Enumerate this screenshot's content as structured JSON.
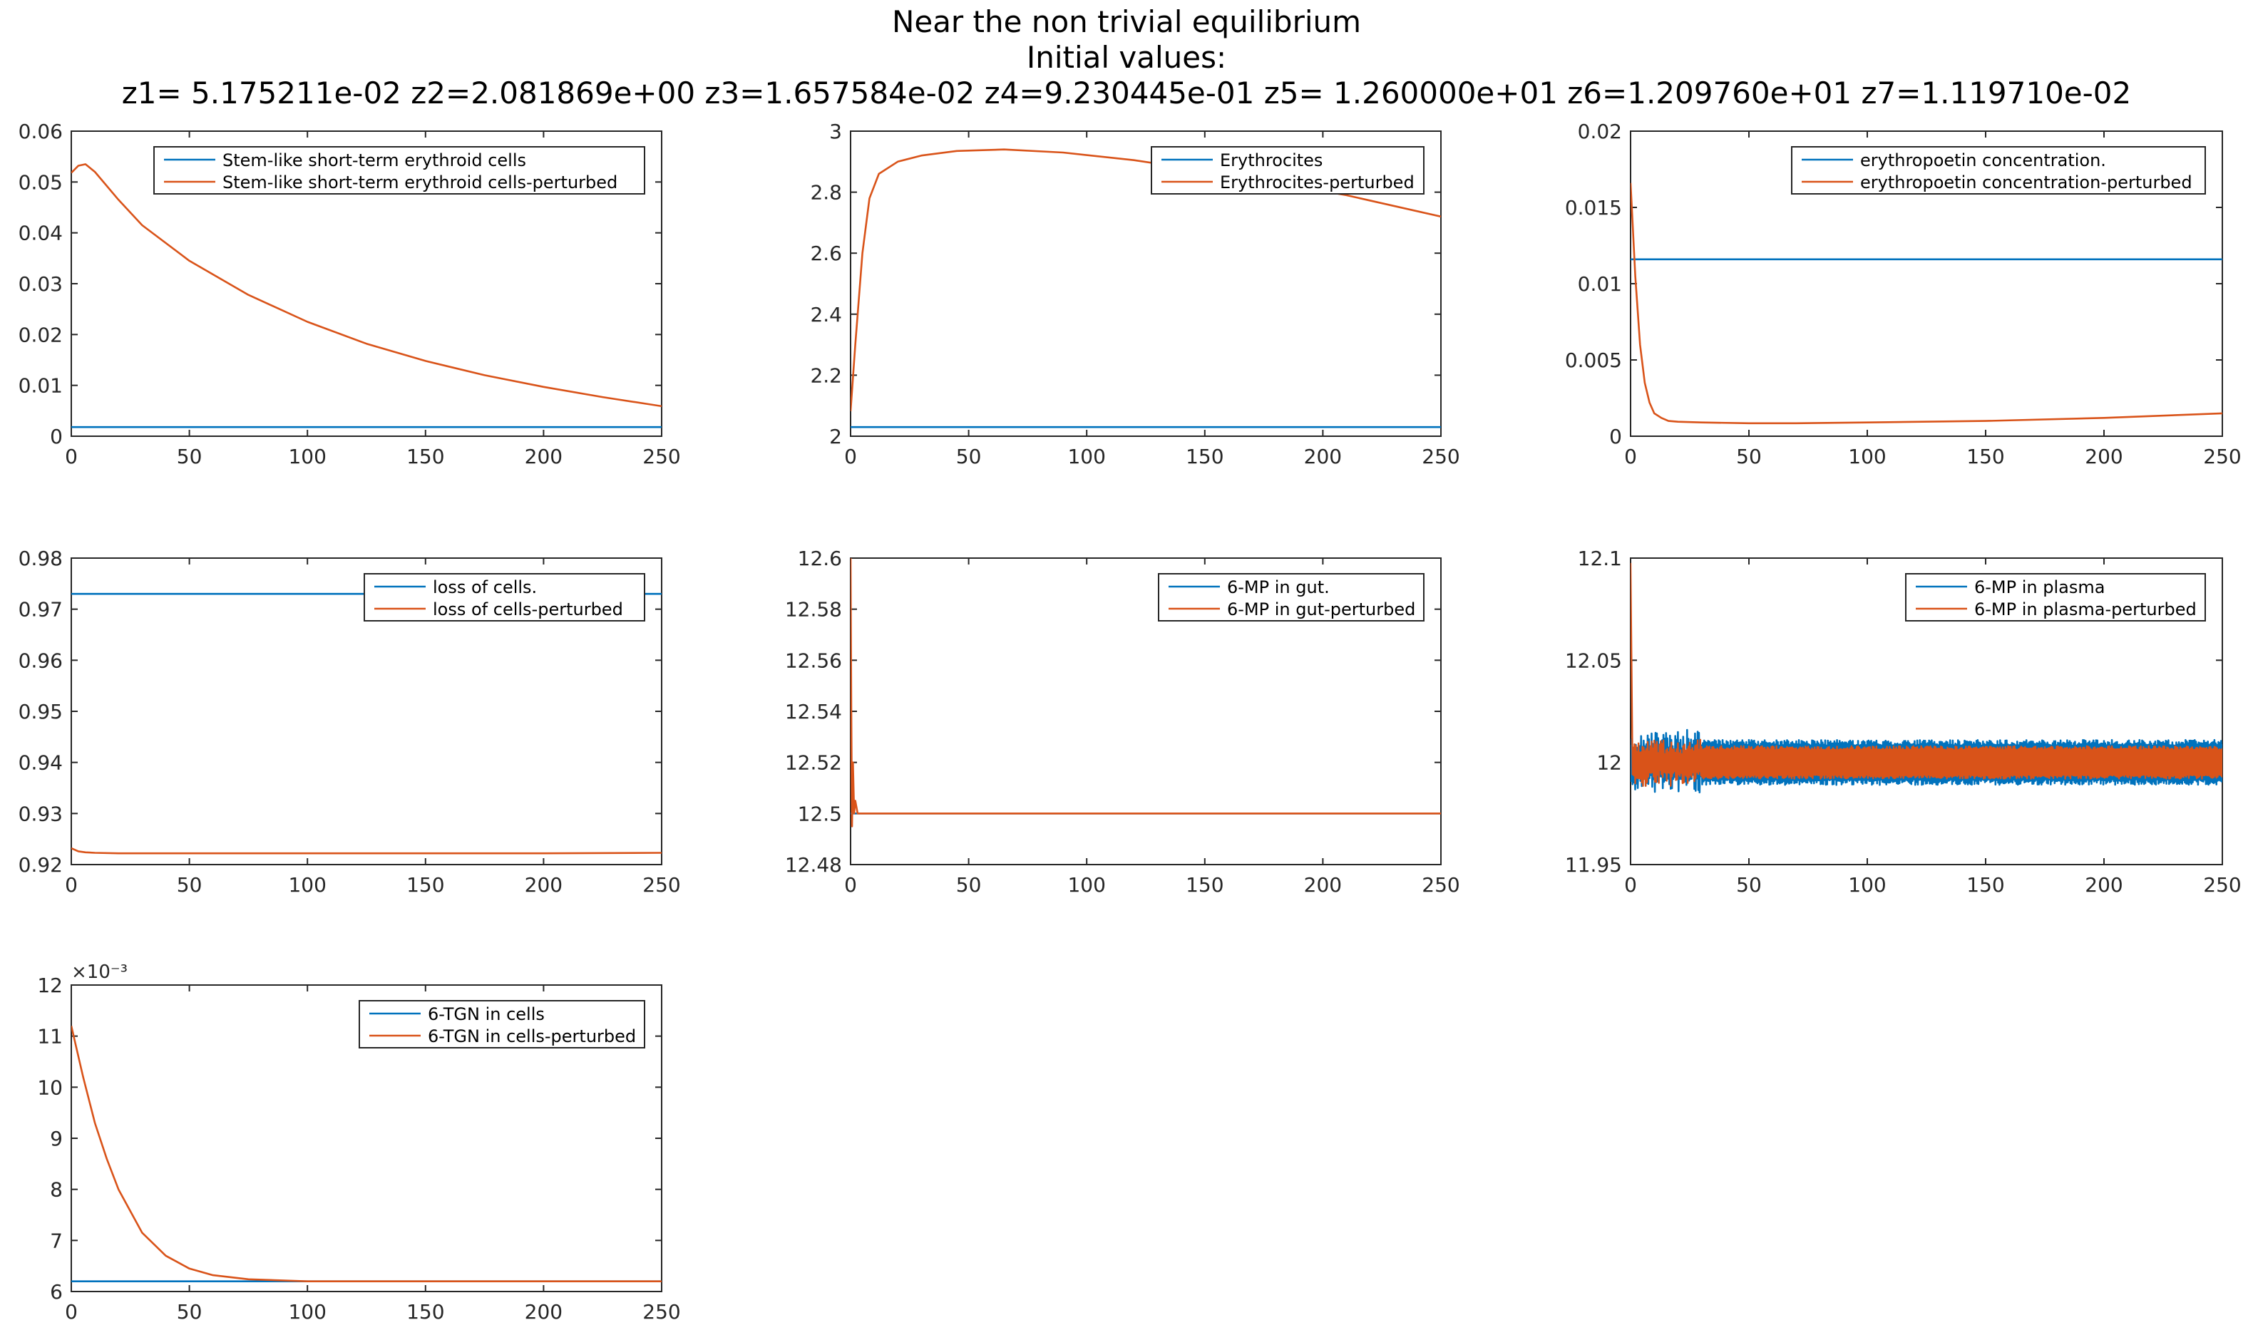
{
  "figure": {
    "title_lines": [
      "Near the non trivial equilibrium",
      "Initial values:",
      "z1= 5.175211e-02 z2=2.081869e+00 z3=1.657584e-02 z4=9.230445e-01 z5= 1.260000e+01 z6=1.209760e+01 z7=1.119710e-02"
    ],
    "colors": {
      "unperturbed": "#0072BD",
      "perturbed": "#D95319",
      "axis": "#262626"
    }
  },
  "chart_data": [
    {
      "type": "line",
      "xlim": [
        0,
        250
      ],
      "ylim": [
        0,
        0.06
      ],
      "xticks": [
        "0",
        "50",
        "100",
        "150",
        "200",
        "250"
      ],
      "yticks": [
        "0",
        "0.01",
        "0.02",
        "0.03",
        "0.04",
        "0.05",
        "0.06"
      ],
      "legend_position": "top-right",
      "series": [
        {
          "name": "Stem-like short-term erythroid cells",
          "x": [
            0,
            250
          ],
          "y": [
            0.0018,
            0.0018
          ]
        },
        {
          "name": "Stem-like short-term erythroid cells-perturbed",
          "x": [
            0,
            3,
            6,
            10,
            20,
            30,
            50,
            75,
            100,
            125,
            150,
            175,
            200,
            225,
            250
          ],
          "y": [
            0.0518,
            0.0532,
            0.0535,
            0.052,
            0.0465,
            0.0415,
            0.0345,
            0.0278,
            0.0225,
            0.0182,
            0.0148,
            0.012,
            0.0097,
            0.0077,
            0.0059
          ]
        }
      ]
    },
    {
      "type": "line",
      "xlim": [
        0,
        250
      ],
      "ylim": [
        2,
        3
      ],
      "xticks": [
        "0",
        "50",
        "100",
        "150",
        "200",
        "250"
      ],
      "yticks": [
        "2",
        "2.2",
        "2.4",
        "2.6",
        "2.8",
        "3"
      ],
      "legend_position": "top-right",
      "series": [
        {
          "name": "Erythrocites",
          "x": [
            0,
            250
          ],
          "y": [
            2.03,
            2.03
          ]
        },
        {
          "name": "Erythrocites-perturbed",
          "x": [
            0,
            2,
            5,
            8,
            12,
            20,
            30,
            45,
            65,
            90,
            120,
            150,
            180,
            210,
            250
          ],
          "y": [
            2.082,
            2.3,
            2.6,
            2.78,
            2.86,
            2.9,
            2.92,
            2.935,
            2.94,
            2.93,
            2.905,
            2.87,
            2.83,
            2.79,
            2.72
          ]
        }
      ]
    },
    {
      "type": "line",
      "xlim": [
        0,
        250
      ],
      "ylim": [
        0,
        0.02
      ],
      "xticks": [
        "0",
        "50",
        "100",
        "150",
        "200",
        "250"
      ],
      "yticks": [
        "0",
        "0.005",
        "0.01",
        "0.015",
        "0.02"
      ],
      "legend_position": "top-right",
      "series": [
        {
          "name": "erythropoetin concentration.",
          "x": [
            0,
            250
          ],
          "y": [
            0.0116,
            0.0116
          ]
        },
        {
          "name": "erythropoetin concentration-perturbed",
          "x": [
            0,
            2,
            4,
            6,
            8,
            10,
            13,
            16,
            20,
            30,
            50,
            70,
            100,
            150,
            200,
            250
          ],
          "y": [
            0.0166,
            0.0105,
            0.006,
            0.0035,
            0.0022,
            0.0015,
            0.0012,
            0.001,
            0.00095,
            0.0009,
            0.00085,
            0.00085,
            0.0009,
            0.001,
            0.0012,
            0.0015
          ]
        }
      ]
    },
    {
      "type": "line",
      "xlim": [
        0,
        250
      ],
      "ylim": [
        0.92,
        0.98
      ],
      "xticks": [
        "0",
        "50",
        "100",
        "150",
        "200",
        "250"
      ],
      "yticks": [
        "0.92",
        "0.93",
        "0.94",
        "0.95",
        "0.96",
        "0.97",
        "0.98"
      ],
      "legend_position": "top-right",
      "series": [
        {
          "name": "loss of cells.",
          "x": [
            0,
            250
          ],
          "y": [
            0.973,
            0.973
          ]
        },
        {
          "name": "loss of cells-perturbed",
          "x": [
            0,
            3,
            6,
            10,
            20,
            50,
            100,
            150,
            200,
            250
          ],
          "y": [
            0.9232,
            0.9226,
            0.9224,
            0.9223,
            0.9222,
            0.9222,
            0.9222,
            0.9222,
            0.9222,
            0.9223
          ]
        }
      ]
    },
    {
      "type": "line",
      "xlim": [
        0,
        250
      ],
      "ylim": [
        12.48,
        12.6
      ],
      "xticks": [
        "0",
        "50",
        "100",
        "150",
        "200",
        "250"
      ],
      "yticks": [
        "12.48",
        "12.5",
        "12.52",
        "12.54",
        "12.56",
        "12.58",
        "12.6"
      ],
      "legend_position": "top-right",
      "series": [
        {
          "name": "6-MP in gut.",
          "x": [
            0,
            250
          ],
          "y": [
            12.5,
            12.5
          ]
        },
        {
          "name": "6-MP in gut-perturbed",
          "x": [
            0,
            0.3,
            0.6,
            1,
            1.5,
            2,
            3,
            250
          ],
          "y": [
            12.6,
            12.54,
            12.495,
            12.52,
            12.5,
            12.505,
            12.5,
            12.5
          ]
        }
      ]
    },
    {
      "type": "line",
      "xlim": [
        0,
        250
      ],
      "ylim": [
        11.95,
        12.1
      ],
      "xticks": [
        "0",
        "50",
        "100",
        "150",
        "200",
        "250"
      ],
      "yticks": [
        "11.95",
        "12",
        "12.05",
        "12.1"
      ],
      "legend_position": "top-right",
      "series": [
        {
          "name": "6-MP in plasma",
          "center": 12.0,
          "amplitude": 0.011,
          "x_start": 0,
          "x_end": 250
        },
        {
          "name": "6-MP in plasma-perturbed",
          "start_value": 12.0976,
          "center": 12.0,
          "amplitude": 0.008,
          "x_start": 0,
          "x_end": 250
        }
      ]
    },
    {
      "type": "line",
      "xlim": [
        0,
        250
      ],
      "ylim": [
        6,
        12
      ],
      "yscale_label": "×10⁻³",
      "xticks": [
        "0",
        "50",
        "100",
        "150",
        "200",
        "250"
      ],
      "yticks": [
        "6",
        "7",
        "8",
        "9",
        "10",
        "11",
        "12"
      ],
      "legend_position": "top-right",
      "series": [
        {
          "name": "6-TGN in cells",
          "x": [
            0,
            250
          ],
          "y": [
            6.2,
            6.2
          ]
        },
        {
          "name": "6-TGN in cells-perturbed",
          "x": [
            0,
            5,
            10,
            15,
            20,
            30,
            40,
            50,
            60,
            75,
            100,
            150,
            200,
            250
          ],
          "y": [
            11.2,
            10.2,
            9.3,
            8.6,
            8.0,
            7.15,
            6.7,
            6.45,
            6.32,
            6.24,
            6.2,
            6.2,
            6.2,
            6.2
          ]
        }
      ]
    }
  ]
}
